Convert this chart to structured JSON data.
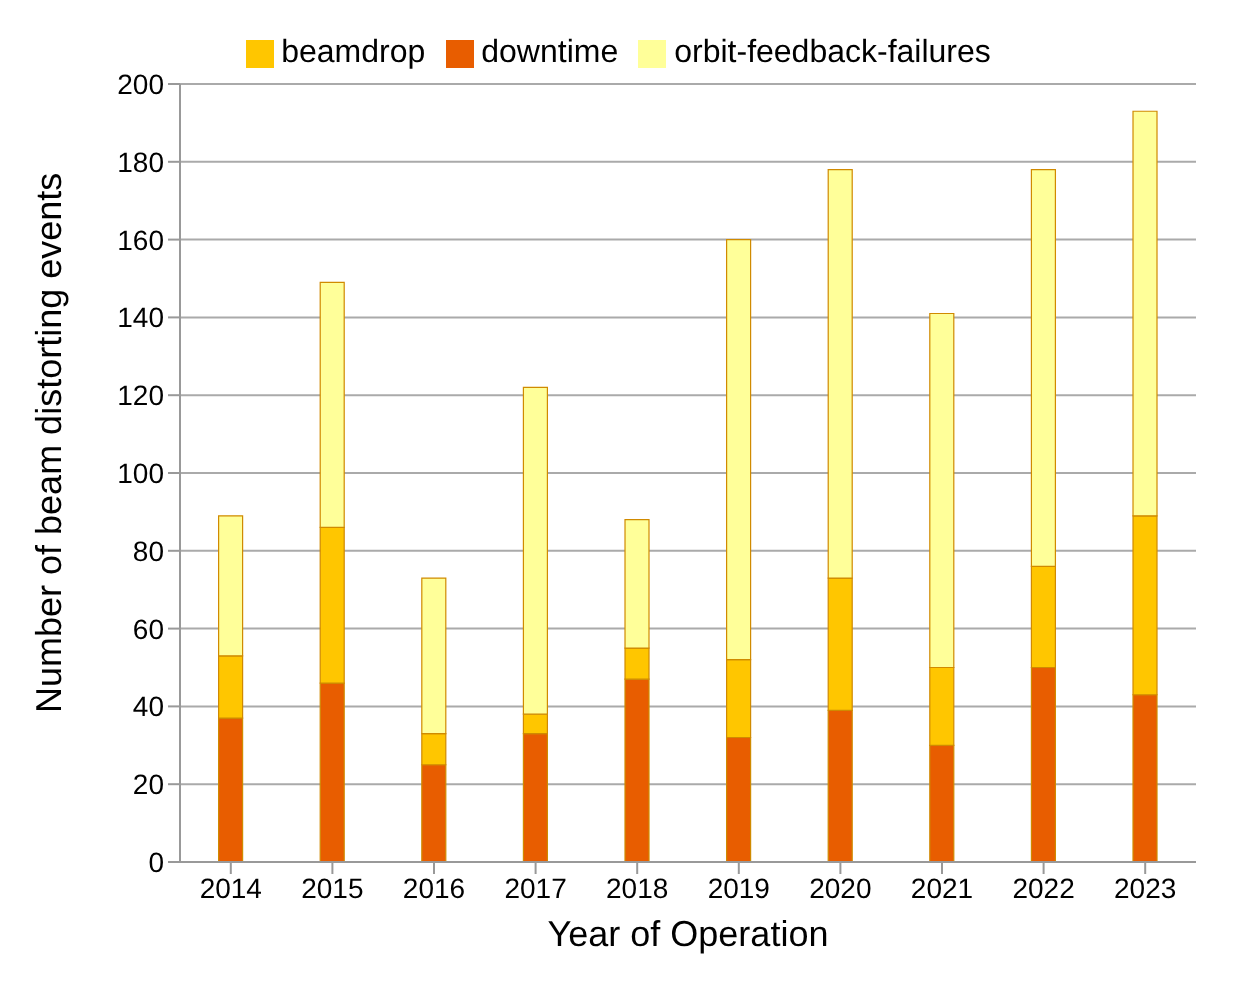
{
  "chart_data": {
    "type": "bar",
    "stacked": true,
    "xlabel": "Year of Operation",
    "ylabel": "Number of beam distorting events",
    "categories": [
      "2014",
      "2015",
      "2016",
      "2017",
      "2018",
      "2019",
      "2020",
      "2021",
      "2022",
      "2023"
    ],
    "series": [
      {
        "name": "downtime",
        "color": "#e85d00",
        "values": [
          37,
          46,
          25,
          33,
          47,
          32,
          39,
          30,
          50,
          43
        ]
      },
      {
        "name": "beamdrop",
        "color": "#ffc600",
        "values": [
          16,
          40,
          8,
          5,
          8,
          20,
          34,
          20,
          26,
          46
        ]
      },
      {
        "name": "orbit-feedback-failures",
        "color": "#ffff99",
        "values": [
          36,
          63,
          40,
          84,
          33,
          108,
          105,
          91,
          102,
          104
        ]
      }
    ],
    "ylim": [
      0,
      200
    ],
    "yticks": [
      0,
      20,
      40,
      60,
      80,
      100,
      120,
      140,
      160,
      180,
      200
    ],
    "grid": "y",
    "legend": "top"
  }
}
